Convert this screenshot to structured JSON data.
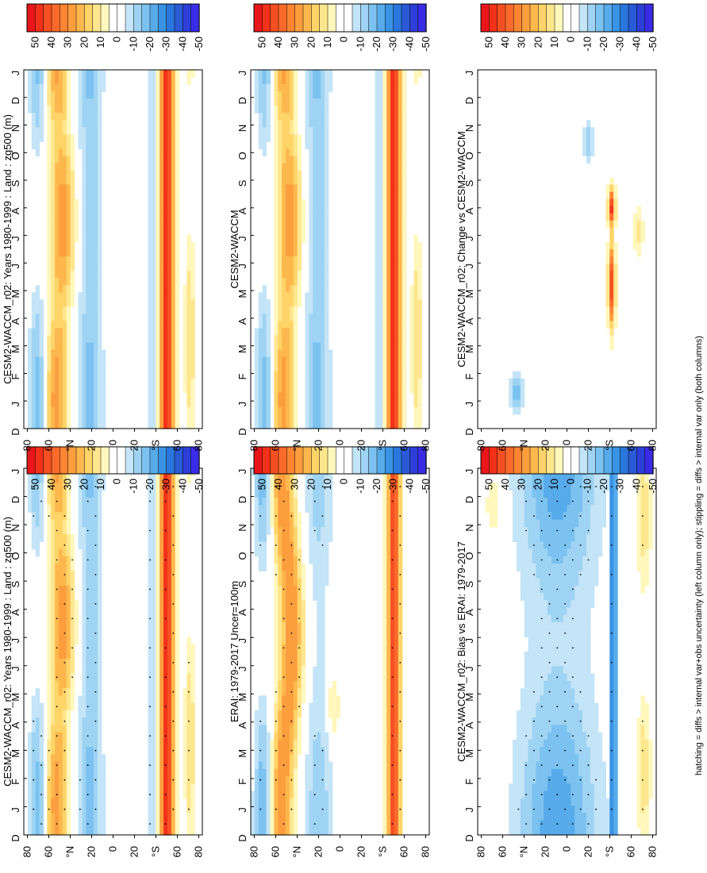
{
  "figure": {
    "footnote": "hatching = diffs > internal var+obs uncertainty (left column only); stippling = diffs > internal var only (both columns)"
  },
  "colors": {
    "levels": [
      50,
      45,
      40,
      35,
      30,
      25,
      20,
      15,
      10,
      5,
      0,
      -5,
      -10,
      -15,
      -20,
      -25,
      -30,
      -35,
      -40,
      -45,
      -50
    ],
    "palette": [
      "#e8161b",
      "#f2311a",
      "#f65022",
      "#fb6a2b",
      "#fd8532",
      "#fd9e3e",
      "#fdb84d",
      "#fed468",
      "#fee68e",
      "#fff7bb",
      "#ffffff",
      "#ffffff",
      "#c4e4f7",
      "#9fd3f3",
      "#7cc2f0",
      "#58abea",
      "#3a93e4",
      "#2a76dc",
      "#2a5ad6",
      "#2e3fd8",
      "#3a2ce6"
    ]
  },
  "chart_data": [
    {
      "type": "heatmap",
      "title": "CESM2-WACCM_r02: Years 1980-1999 : Land : zg500 (m)",
      "months": [
        "J",
        "F",
        "M",
        "A",
        "M",
        "J",
        "J",
        "A",
        "S",
        "O",
        "N",
        "D",
        "J"
      ],
      "lat_ticks": [
        "80",
        "60",
        "°N",
        "20",
        "0",
        "20",
        "°S",
        "60",
        "80"
      ],
      "start_label": "D",
      "colorbar_labels": [
        "50",
        "40",
        "30",
        "20",
        "10",
        "0",
        "-10",
        "-20",
        "-30",
        "-40",
        "-50"
      ],
      "field": "model",
      "stipple": true
    },
    {
      "type": "heatmap",
      "title": "CESM2-WACCM_r02: Years 1980-1999 : Land : zg500 (m)",
      "months": [
        "J",
        "F",
        "M",
        "A",
        "M",
        "J",
        "J",
        "A",
        "S",
        "O",
        "N",
        "D",
        "J"
      ],
      "lat_ticks": [
        "80",
        "60",
        "°N",
        "20",
        "0",
        "20",
        "°S",
        "60",
        "80"
      ],
      "start_label": "D",
      "colorbar_labels": [
        "50",
        "40",
        "30",
        "20",
        "10",
        "0",
        "-10",
        "-20",
        "-30",
        "-40",
        "-50"
      ],
      "field": "model",
      "stipple": false
    },
    {
      "type": "heatmap",
      "title": "ERAI: 1979-2017 Uncer=100m",
      "months": [
        "J",
        "F",
        "M",
        "A",
        "M",
        "J",
        "J",
        "A",
        "S",
        "O",
        "N",
        "D",
        "J"
      ],
      "lat_ticks": [
        "80",
        "60",
        "°N",
        "20",
        "0",
        "20",
        "°S",
        "60",
        "80"
      ],
      "start_label": "D",
      "colorbar_labels": [
        "50",
        "40",
        "30",
        "20",
        "10",
        "0",
        "-10",
        "-20",
        "-30",
        "-40",
        "-50"
      ],
      "field": "obs",
      "stipple": true
    },
    {
      "type": "heatmap",
      "title": "CESM2-WACCM",
      "months": [
        "J",
        "F",
        "M",
        "A",
        "M",
        "J",
        "J",
        "A",
        "S",
        "O",
        "N",
        "D",
        "J"
      ],
      "lat_ticks": [
        "80",
        "60",
        "°N",
        "20",
        "0",
        "20",
        "°S",
        "60",
        "80"
      ],
      "start_label": "D",
      "colorbar_labels": [
        "50",
        "40",
        "30",
        "20",
        "10",
        "0",
        "-10",
        "-20",
        "-30",
        "-40",
        "-50"
      ],
      "field": "model",
      "stipple": false
    },
    {
      "type": "heatmap",
      "title": "CESM2-WACCM_r02: Bias vs ERAI: 1979-2017",
      "months": [
        "J",
        "F",
        "M",
        "A",
        "M",
        "J",
        "J",
        "A",
        "S",
        "O",
        "N",
        "D",
        "J"
      ],
      "lat_ticks": [
        "80",
        "60",
        "°N",
        "20",
        "0",
        "20",
        "°S",
        "60",
        "80"
      ],
      "start_label": "D",
      "colorbar_labels": [
        "50",
        "40",
        "30",
        "20",
        "10",
        "0",
        "-10",
        "-20",
        "-30",
        "-40",
        "-50"
      ],
      "field": "bias",
      "stipple": true
    },
    {
      "type": "heatmap",
      "title": "CESM2-WACCM_r02: Change vs CESM2-WACCM",
      "months": [
        "J",
        "F",
        "M",
        "A",
        "M",
        "J",
        "J",
        "A",
        "S",
        "O",
        "N",
        "D",
        "J"
      ],
      "lat_ticks": [
        "80",
        "60",
        "°N",
        "20",
        "0",
        "20",
        "°S",
        "60",
        "80"
      ],
      "start_label": "D",
      "colorbar_labels": [
        "50",
        "40",
        "30",
        "20",
        "10",
        "0",
        "-10",
        "-20",
        "-30",
        "-40",
        "-50"
      ],
      "field": "change",
      "stipple": false
    }
  ]
}
